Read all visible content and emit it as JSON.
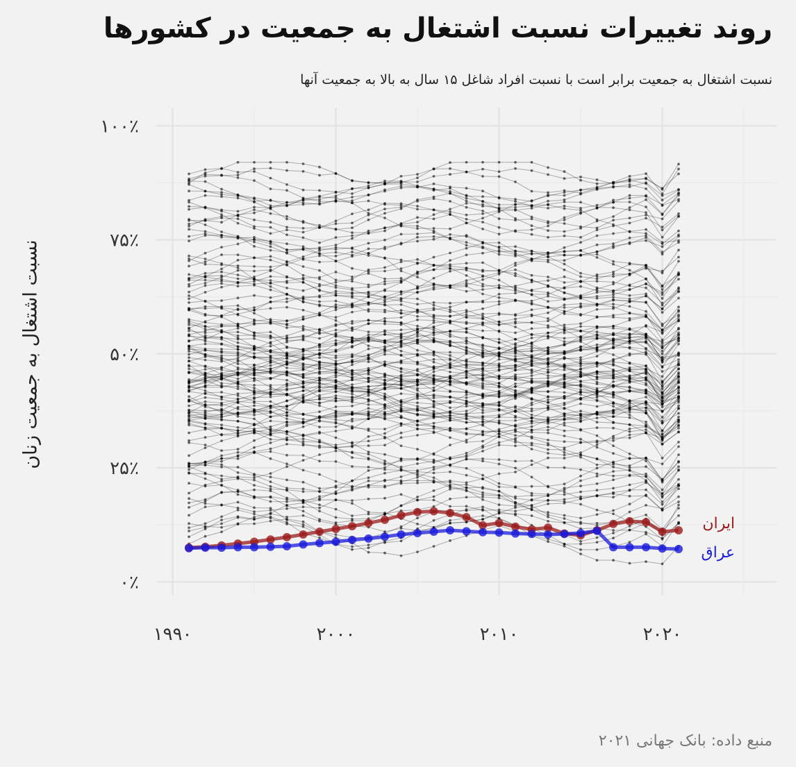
{
  "chart_data": {
    "type": "line",
    "title": "روند تغییرات نسبت اشتغال به جمعیت در کشورها",
    "subtitle": "نسبت اشتغال به جمعیت برابر است با نسبت افراد شاغل ۱۵ سال به بالا به جمعیت آنها",
    "xlabel": "",
    "ylabel": "نسبت اشتغال به جمعیت زنان",
    "caption": "منبع داده: بانک جهانی ۲۰۲۱",
    "xlim": [
      1989,
      2027
    ],
    "ylim": [
      -3,
      104
    ],
    "x_ticks": [
      1990,
      2000,
      2010,
      2020
    ],
    "x_tick_labels": [
      "۱۹۹۰",
      "۲۰۰۰",
      "۲۰۱۰",
      "۲۰۲۰"
    ],
    "y_ticks": [
      0,
      25,
      50,
      75,
      100
    ],
    "y_tick_labels": [
      "۰٪",
      "۲۵٪",
      "۵۰٪",
      "۷۵٪",
      "۱۰۰٪"
    ],
    "grid": true,
    "legend": "direct labels at line ends",
    "background_series": {
      "count": 120,
      "color": "#000000",
      "x_range": [
        1991,
        2021
      ],
      "note_shown": "many countries, thin grey lines with dots",
      "band_values_1991": [
        88,
        86,
        84,
        82,
        80,
        78,
        76,
        75,
        73,
        71,
        70,
        68,
        67,
        66,
        65,
        64,
        63,
        62,
        61,
        60,
        59,
        58,
        57,
        56,
        55,
        54,
        54,
        53,
        53,
        52,
        52,
        51,
        51,
        50,
        50,
        49,
        49,
        48,
        48,
        47,
        47,
        46,
        46,
        45,
        45,
        44,
        44,
        43,
        43,
        42,
        42,
        41,
        41,
        40,
        40,
        39,
        39,
        38,
        38,
        37,
        37,
        36,
        36,
        35,
        35,
        34,
        34,
        33,
        32,
        31,
        30,
        29,
        28,
        27,
        26,
        25,
        24,
        23,
        22,
        21,
        20,
        19,
        18,
        17,
        16,
        15,
        14,
        13,
        12,
        11,
        10,
        49,
        50,
        47,
        45,
        43,
        41,
        39,
        37,
        35,
        52,
        55,
        58,
        61,
        64,
        67,
        69,
        72,
        74,
        77,
        79,
        81,
        83,
        85,
        87,
        89,
        90,
        46,
        44,
        42
      ]
    },
    "series": [
      {
        "name": "ایران",
        "color": "#9b1c1c",
        "x": [
          1991,
          1992,
          1993,
          1994,
          1995,
          1996,
          1997,
          1998,
          1999,
          2000,
          2001,
          2002,
          2003,
          2004,
          2005,
          2006,
          2007,
          2008,
          2009,
          2010,
          2011,
          2012,
          2013,
          2014,
          2015,
          2016,
          2017,
          2018,
          2019,
          2020,
          2021
        ],
        "values": [
          7.5,
          7.7,
          8.0,
          8.4,
          8.8,
          9.3,
          9.8,
          10.4,
          11.0,
          11.6,
          12.2,
          12.9,
          13.6,
          14.6,
          15.3,
          15.5,
          15.1,
          14.2,
          12.4,
          12.9,
          12.1,
          11.5,
          11.9,
          10.6,
          10.2,
          11.3,
          12.7,
          13.3,
          13.1,
          11.0,
          11.3
        ]
      },
      {
        "name": "عراق",
        "color": "#1a1adb",
        "x": [
          1991,
          1992,
          1993,
          1994,
          1995,
          1996,
          1997,
          1998,
          1999,
          2000,
          2001,
          2002,
          2003,
          2004,
          2005,
          2006,
          2007,
          2008,
          2009,
          2010,
          2011,
          2012,
          2013,
          2014,
          2015,
          2016,
          2017,
          2018,
          2019,
          2020,
          2021
        ],
        "values": [
          7.4,
          7.5,
          7.5,
          7.6,
          7.6,
          7.7,
          7.8,
          8.2,
          8.5,
          8.8,
          9.2,
          9.5,
          9.9,
          10.4,
          10.7,
          11.0,
          11.3,
          11.1,
          10.9,
          10.8,
          10.6,
          10.5,
          10.4,
          10.5,
          10.7,
          11.2,
          7.6,
          7.6,
          7.6,
          7.3,
          7.2
        ]
      }
    ]
  }
}
